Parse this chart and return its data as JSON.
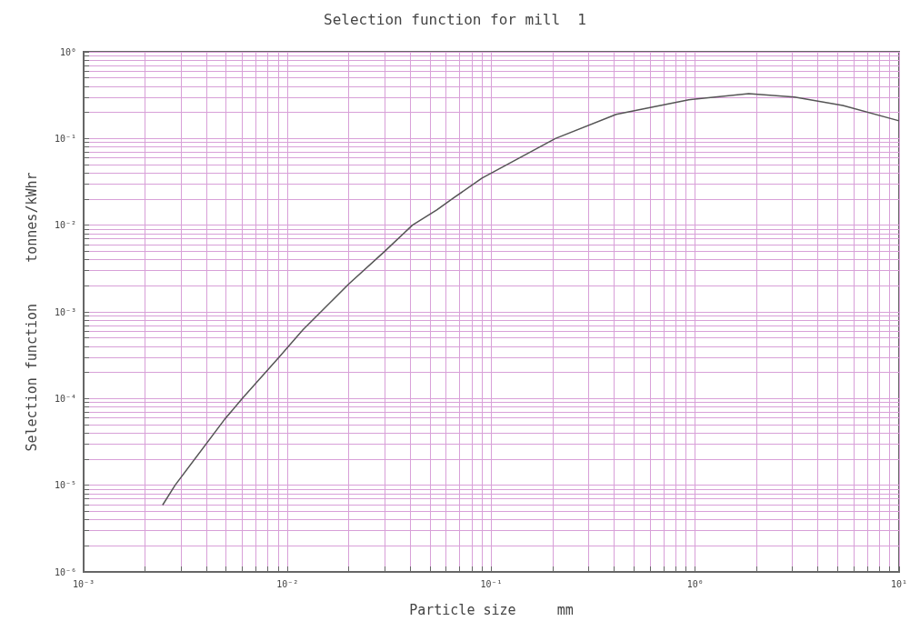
{
  "chart_data": {
    "type": "line",
    "title": "Selection function for mill  1",
    "xlabel": "Particle size     mm",
    "ylabel": "Selection function     tonnes/kWhr",
    "x": [
      0.00244,
      0.00281,
      0.0049,
      0.006,
      0.0091,
      0.0119,
      0.02,
      0.03,
      0.041,
      0.054,
      0.066,
      0.09,
      0.206,
      0.41,
      0.93,
      1.83,
      3.07,
      5.3,
      10
    ],
    "series": [
      {
        "color": "#555555",
        "values": [
          5.9e-06,
          1e-05,
          5.7e-05,
          0.0001,
          0.0003,
          0.00062,
          0.0021,
          0.005,
          0.01,
          0.015,
          0.021,
          0.035,
          0.1,
          0.19,
          0.28,
          0.33,
          0.3,
          0.24,
          0.16
        ]
      }
    ],
    "log": "xy",
    "grid": true,
    "marker": "none",
    "line_style": "solid",
    "xlim": [
      0.001,
      10
    ],
    "ylim": [
      1e-06,
      1
    ],
    "xticks": [
      {
        "value": 0.001,
        "label": "10⁻³"
      },
      {
        "value": 0.002,
        "label": null
      },
      {
        "value": 0.003,
        "label": null
      },
      {
        "value": 0.004,
        "label": null
      },
      {
        "value": 0.005,
        "label": null
      },
      {
        "value": 0.006,
        "label": null
      },
      {
        "value": 0.007,
        "label": null
      },
      {
        "value": 0.008,
        "label": null
      },
      {
        "value": 0.009,
        "label": null
      },
      {
        "value": 0.01,
        "label": "10⁻²"
      },
      {
        "value": 0.02,
        "label": null
      },
      {
        "value": 0.03,
        "label": null
      },
      {
        "value": 0.04,
        "label": null
      },
      {
        "value": 0.05,
        "label": null
      },
      {
        "value": 0.06,
        "label": null
      },
      {
        "value": 0.07,
        "label": null
      },
      {
        "value": 0.08,
        "label": null
      },
      {
        "value": 0.09,
        "label": null
      },
      {
        "value": 0.1,
        "label": "10⁻¹"
      },
      {
        "value": 0.2,
        "label": null
      },
      {
        "value": 0.3,
        "label": null
      },
      {
        "value": 0.4,
        "label": null
      },
      {
        "value": 0.5,
        "label": null
      },
      {
        "value": 0.6,
        "label": null
      },
      {
        "value": 0.7,
        "label": null
      },
      {
        "value": 0.8,
        "label": null
      },
      {
        "value": 0.9,
        "label": null
      },
      {
        "value": 1,
        "label": "10⁰"
      },
      {
        "value": 2,
        "label": null
      },
      {
        "value": 3,
        "label": null
      },
      {
        "value": 4,
        "label": null
      },
      {
        "value": 5,
        "label": null
      },
      {
        "value": 6,
        "label": null
      },
      {
        "value": 7,
        "label": null
      },
      {
        "value": 8,
        "label": null
      },
      {
        "value": 9,
        "label": null
      },
      {
        "value": 10,
        "label": "10¹"
      }
    ],
    "yticks": [
      {
        "value": 1e-06,
        "label": "10⁻⁶"
      },
      {
        "value": 2e-06,
        "label": null
      },
      {
        "value": 3e-06,
        "label": null
      },
      {
        "value": 4e-06,
        "label": null
      },
      {
        "value": 5e-06,
        "label": null
      },
      {
        "value": 6e-06,
        "label": null
      },
      {
        "value": 7e-06,
        "label": null
      },
      {
        "value": 8e-06,
        "label": null
      },
      {
        "value": 9e-06,
        "label": null
      },
      {
        "value": 1e-05,
        "label": "10⁻⁵"
      },
      {
        "value": 2e-05,
        "label": null
      },
      {
        "value": 3e-05,
        "label": null
      },
      {
        "value": 4e-05,
        "label": null
      },
      {
        "value": 5e-05,
        "label": null
      },
      {
        "value": 6e-05,
        "label": null
      },
      {
        "value": 7e-05,
        "label": null
      },
      {
        "value": 8e-05,
        "label": null
      },
      {
        "value": 9e-05,
        "label": null
      },
      {
        "value": 0.0001,
        "label": "10⁻⁴"
      },
      {
        "value": 0.0002,
        "label": null
      },
      {
        "value": 0.0003,
        "label": null
      },
      {
        "value": 0.0004,
        "label": null
      },
      {
        "value": 0.0005,
        "label": null
      },
      {
        "value": 0.0006,
        "label": null
      },
      {
        "value": 0.0007,
        "label": null
      },
      {
        "value": 0.0008,
        "label": null
      },
      {
        "value": 0.0009,
        "label": null
      },
      {
        "value": 0.001,
        "label": "10⁻³"
      },
      {
        "value": 0.002,
        "label": null
      },
      {
        "value": 0.003,
        "label": null
      },
      {
        "value": 0.004,
        "label": null
      },
      {
        "value": 0.005,
        "label": null
      },
      {
        "value": 0.006,
        "label": null
      },
      {
        "value": 0.007,
        "label": null
      },
      {
        "value": 0.008,
        "label": null
      },
      {
        "value": 0.009,
        "label": null
      },
      {
        "value": 0.01,
        "label": "10⁻²"
      },
      {
        "value": 0.02,
        "label": null
      },
      {
        "value": 0.03,
        "label": null
      },
      {
        "value": 0.04,
        "label": null
      },
      {
        "value": 0.05,
        "label": null
      },
      {
        "value": 0.06,
        "label": null
      },
      {
        "value": 0.07,
        "label": null
      },
      {
        "value": 0.08,
        "label": null
      },
      {
        "value": 0.09,
        "label": null
      },
      {
        "value": 0.1,
        "label": "10⁻¹"
      },
      {
        "value": 0.2,
        "label": null
      },
      {
        "value": 0.3,
        "label": null
      },
      {
        "value": 0.4,
        "label": null
      },
      {
        "value": 0.5,
        "label": null
      },
      {
        "value": 0.6,
        "label": null
      },
      {
        "value": 0.7,
        "label": null
      },
      {
        "value": 0.8,
        "label": null
      },
      {
        "value": 0.9,
        "label": null
      },
      {
        "value": 1,
        "label": "10⁰"
      }
    ]
  }
}
